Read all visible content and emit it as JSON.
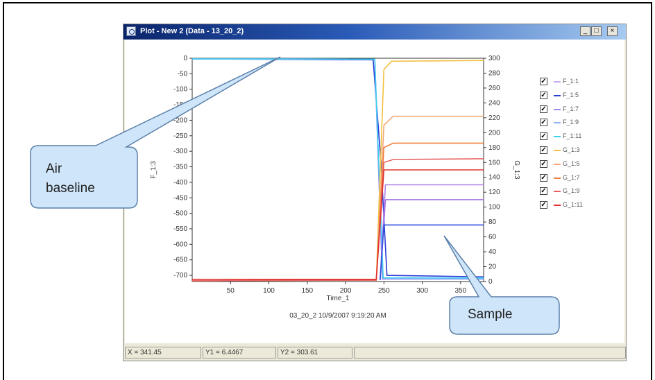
{
  "window": {
    "title": "Plot - New 2 (Data - 13_20_2)",
    "minimize_glyph": "_",
    "maximize_glyph": "□",
    "close_glyph": "×"
  },
  "chart_data": {
    "type": "line",
    "xlabel": "Time_1",
    "ylabel_left": "F_1:3",
    "ylabel_right": "G_1:3",
    "caption": "03_20_2  10/9/2007 9:19:20 AM",
    "xlim": [
      0,
      380
    ],
    "ylim_left": [
      -720,
      0
    ],
    "ylim_right": [
      0,
      300
    ],
    "x_ticks": [
      "50",
      "100",
      "150",
      "200",
      "250",
      "300",
      "350"
    ],
    "y_left_ticks": [
      "0",
      "-50",
      "-100",
      "-150",
      "-200",
      "-250",
      "-300",
      "-350",
      "-400",
      "-450",
      "-500",
      "-550",
      "-600",
      "-650",
      "-700"
    ],
    "y_right_ticks": [
      "300",
      "280",
      "260",
      "240",
      "220",
      "200",
      "180",
      "160",
      "140",
      "120",
      "100",
      "80",
      "60",
      "40",
      "20",
      "0"
    ],
    "grid": false,
    "legend_position": "right",
    "series": [
      {
        "name": "F_1:1",
        "axis": "left",
        "color": "#c8a8e8",
        "points": [
          [
            0,
            -2
          ],
          [
            238,
            -3
          ],
          [
            248,
            -710
          ],
          [
            380,
            -712
          ]
        ]
      },
      {
        "name": "F_1:5",
        "axis": "left",
        "color": "#2a3cd8",
        "points": [
          [
            0,
            -2
          ],
          [
            236,
            -5
          ],
          [
            246,
            -330
          ],
          [
            254,
            -700
          ],
          [
            380,
            -705
          ]
        ]
      },
      {
        "name": "F_1:7",
        "axis": "left",
        "color": "#9a88f0",
        "points": [
          [
            0,
            -2
          ],
          [
            238,
            -3
          ],
          [
            248,
            -712
          ],
          [
            380,
            -712
          ]
        ]
      },
      {
        "name": "F_1:9",
        "axis": "left",
        "color": "#90b0ff",
        "points": [
          [
            0,
            -2
          ],
          [
            238,
            -3
          ],
          [
            249,
            -710
          ],
          [
            380,
            -711
          ]
        ]
      },
      {
        "name": "F_1:11",
        "axis": "left",
        "color": "#40d0f0",
        "points": [
          [
            0,
            -2
          ],
          [
            238,
            -3
          ],
          [
            249,
            -708
          ],
          [
            380,
            -709
          ]
        ]
      },
      {
        "name": "G_1:3",
        "axis": "right",
        "color": "#f2c040",
        "points": [
          [
            0,
            1
          ],
          [
            240,
            2
          ],
          [
            250,
            285
          ],
          [
            260,
            296
          ],
          [
            380,
            297
          ]
        ]
      },
      {
        "name": "G_1:5",
        "axis": "right",
        "color": "#f4a878",
        "points": [
          [
            0,
            1
          ],
          [
            240,
            2
          ],
          [
            250,
            210
          ],
          [
            262,
            222
          ],
          [
            380,
            222
          ]
        ]
      },
      {
        "name": "G_1:7",
        "axis": "right",
        "color": "#f08040",
        "points": [
          [
            0,
            1
          ],
          [
            240,
            2
          ],
          [
            250,
            180
          ],
          [
            262,
            186
          ],
          [
            380,
            186
          ]
        ]
      },
      {
        "name": "G_1:9",
        "axis": "right",
        "color": "#e86060",
        "points": [
          [
            0,
            1
          ],
          [
            240,
            2
          ],
          [
            250,
            160
          ],
          [
            262,
            164
          ],
          [
            380,
            165
          ]
        ]
      },
      {
        "name": "G_1:11",
        "axis": "right",
        "color": "#e03030",
        "points": [
          [
            0,
            3
          ],
          [
            240,
            3
          ],
          [
            250,
            150
          ],
          [
            262,
            150
          ],
          [
            380,
            150
          ]
        ]
      },
      {
        "name": "",
        "axis": "right",
        "color": "#b080e8",
        "points": [
          [
            245,
            2
          ],
          [
            252,
            130
          ],
          [
            262,
            130
          ],
          [
            380,
            130
          ]
        ]
      },
      {
        "name": "",
        "axis": "right",
        "color": "#a070e0",
        "points": [
          [
            245,
            2
          ],
          [
            252,
            110
          ],
          [
            262,
            110
          ],
          [
            380,
            110
          ]
        ]
      },
      {
        "name": "",
        "axis": "right",
        "color": "#3050e0",
        "points": [
          [
            245,
            2
          ],
          [
            250,
            76
          ],
          [
            262,
            76
          ],
          [
            380,
            76
          ]
        ]
      }
    ]
  },
  "legend": {
    "check_glyph": "✓",
    "items": [
      {
        "label": "F_1:1",
        "color": "#c8a8e8"
      },
      {
        "label": "F_1:5",
        "color": "#2a3cd8"
      },
      {
        "label": "F_1:7",
        "color": "#9a88f0"
      },
      {
        "label": "F_1:9",
        "color": "#90b0ff"
      },
      {
        "label": "F_1:11",
        "color": "#40d0f0"
      },
      {
        "label": "G_1:3",
        "color": "#f2c040"
      },
      {
        "label": "G_1:5",
        "color": "#f4a878"
      },
      {
        "label": "G_1:7",
        "color": "#f08040"
      },
      {
        "label": "G_1:9",
        "color": "#e86060"
      },
      {
        "label": "G_1:11",
        "color": "#e03030"
      }
    ]
  },
  "status": {
    "x": "X = 341.45",
    "y1": "Y1 = 6.4467",
    "y2": "Y2 = 303.61"
  },
  "callouts": {
    "air_line1": "Air",
    "air_line2": "baseline",
    "sample": "Sample",
    "fill": "#cfe6fa",
    "stroke": "#5a7fa8"
  }
}
